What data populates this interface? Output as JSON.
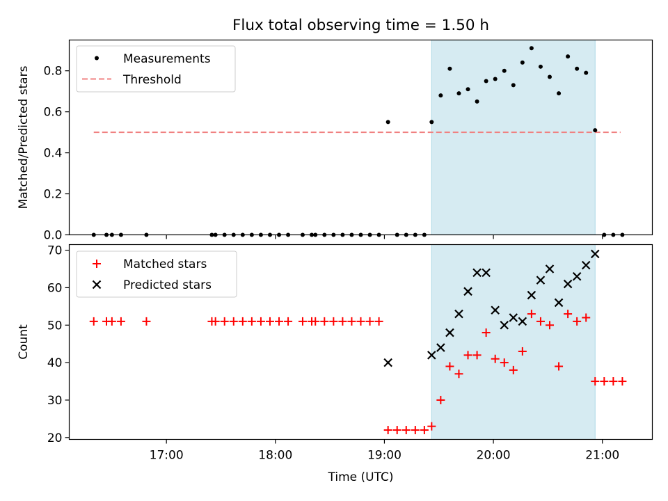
{
  "chart_data": {
    "title": "Flux total observing time = 1.50 h",
    "xlabel": "Time (UTC)",
    "x_ticks": [
      "17:00",
      "18:00",
      "19:00",
      "20:00",
      "21:00"
    ],
    "observing_window": [
      "19:26",
      "20:56"
    ],
    "colors": {
      "measurements": "#000000",
      "threshold": "#f08080",
      "matched": "#ff0000",
      "predicted": "#000000",
      "span": "#add8e6"
    },
    "panels": [
      {
        "type": "scatter",
        "ylabel": "Matched/Predicted stars",
        "ylim": [
          0,
          0.95
        ],
        "y_ticks": [
          "0.0",
          "0.2",
          "0.4",
          "0.6",
          "0.8"
        ],
        "legend_position": "upper-left",
        "threshold": {
          "name": "Threshold",
          "value": 0.5,
          "x_range": [
            "16:20",
            "21:10"
          ]
        },
        "series": [
          {
            "name": "Measurements",
            "marker": "dot",
            "points": [
              [
                "16:20",
                0
              ],
              [
                "16:27",
                0
              ],
              [
                "16:30",
                0
              ],
              [
                "16:35",
                0
              ],
              [
                "16:49",
                0
              ],
              [
                "17:25",
                0
              ],
              [
                "17:27",
                0
              ],
              [
                "17:32",
                0
              ],
              [
                "17:37",
                0
              ],
              [
                "17:42",
                0
              ],
              [
                "17:47",
                0
              ],
              [
                "17:52",
                0
              ],
              [
                "17:57",
                0
              ],
              [
                "18:02",
                0
              ],
              [
                "18:07",
                0
              ],
              [
                "18:15",
                0
              ],
              [
                "18:20",
                0
              ],
              [
                "18:22",
                0
              ],
              [
                "18:27",
                0
              ],
              [
                "18:32",
                0
              ],
              [
                "18:37",
                0
              ],
              [
                "18:42",
                0
              ],
              [
                "18:47",
                0
              ],
              [
                "18:52",
                0
              ],
              [
                "18:57",
                0
              ],
              [
                "19:02",
                0.55
              ],
              [
                "19:07",
                0
              ],
              [
                "19:12",
                0
              ],
              [
                "19:17",
                0
              ],
              [
                "19:22",
                0
              ],
              [
                "19:26",
                0.55
              ],
              [
                "19:31",
                0.68
              ],
              [
                "19:36",
                0.81
              ],
              [
                "19:41",
                0.69
              ],
              [
                "19:46",
                0.71
              ],
              [
                "19:51",
                0.65
              ],
              [
                "19:56",
                0.75
              ],
              [
                "20:01",
                0.76
              ],
              [
                "20:06",
                0.8
              ],
              [
                "20:11",
                0.73
              ],
              [
                "20:16",
                0.84
              ],
              [
                "20:21",
                0.91
              ],
              [
                "20:26",
                0.82
              ],
              [
                "20:31",
                0.77
              ],
              [
                "20:36",
                0.69
              ],
              [
                "20:41",
                0.87
              ],
              [
                "20:46",
                0.81
              ],
              [
                "20:51",
                0.79
              ],
              [
                "20:56",
                0.51
              ],
              [
                "21:01",
                0
              ],
              [
                "21:06",
                0
              ],
              [
                "21:11",
                0
              ]
            ]
          }
        ]
      },
      {
        "type": "scatter",
        "ylabel": "Count",
        "ylim": [
          19.5,
          71.5
        ],
        "y_ticks": [
          "20",
          "30",
          "40",
          "50",
          "60",
          "70"
        ],
        "legend_position": "upper-left",
        "series": [
          {
            "name": "Matched stars",
            "marker": "plus",
            "points": [
              [
                "16:20",
                51
              ],
              [
                "16:27",
                51
              ],
              [
                "16:30",
                51
              ],
              [
                "16:35",
                51
              ],
              [
                "16:49",
                51
              ],
              [
                "17:25",
                51
              ],
              [
                "17:27",
                51
              ],
              [
                "17:32",
                51
              ],
              [
                "17:37",
                51
              ],
              [
                "17:42",
                51
              ],
              [
                "17:47",
                51
              ],
              [
                "17:52",
                51
              ],
              [
                "17:57",
                51
              ],
              [
                "18:02",
                51
              ],
              [
                "18:07",
                51
              ],
              [
                "18:15",
                51
              ],
              [
                "18:20",
                51
              ],
              [
                "18:22",
                51
              ],
              [
                "18:27",
                51
              ],
              [
                "18:32",
                51
              ],
              [
                "18:37",
                51
              ],
              [
                "18:42",
                51
              ],
              [
                "18:47",
                51
              ],
              [
                "18:52",
                51
              ],
              [
                "18:57",
                51
              ],
              [
                "19:02",
                22
              ],
              [
                "19:07",
                22
              ],
              [
                "19:12",
                22
              ],
              [
                "19:17",
                22
              ],
              [
                "19:22",
                22
              ],
              [
                "19:26",
                23
              ],
              [
                "19:31",
                30
              ],
              [
                "19:36",
                39
              ],
              [
                "19:41",
                37
              ],
              [
                "19:46",
                42
              ],
              [
                "19:51",
                42
              ],
              [
                "19:56",
                48
              ],
              [
                "20:01",
                41
              ],
              [
                "20:06",
                40
              ],
              [
                "20:11",
                38
              ],
              [
                "20:16",
                43
              ],
              [
                "20:21",
                53
              ],
              [
                "20:26",
                51
              ],
              [
                "20:31",
                50
              ],
              [
                "20:36",
                39
              ],
              [
                "20:41",
                53
              ],
              [
                "20:46",
                51
              ],
              [
                "20:51",
                52
              ],
              [
                "20:56",
                35
              ],
              [
                "21:01",
                35
              ],
              [
                "21:06",
                35
              ],
              [
                "21:11",
                35
              ]
            ]
          },
          {
            "name": "Predicted stars",
            "marker": "cross",
            "points": [
              [
                "19:02",
                40
              ],
              [
                "19:26",
                42
              ],
              [
                "19:31",
                44
              ],
              [
                "19:36",
                48
              ],
              [
                "19:41",
                53
              ],
              [
                "19:46",
                59
              ],
              [
                "19:51",
                64
              ],
              [
                "19:56",
                64
              ],
              [
                "20:01",
                54
              ],
              [
                "20:06",
                50
              ],
              [
                "20:11",
                52
              ],
              [
                "20:16",
                51
              ],
              [
                "20:21",
                58
              ],
              [
                "20:26",
                62
              ],
              [
                "20:31",
                65
              ],
              [
                "20:36",
                56
              ],
              [
                "20:41",
                61
              ],
              [
                "20:46",
                63
              ],
              [
                "20:51",
                66
              ],
              [
                "20:56",
                69
              ]
            ]
          }
        ]
      }
    ]
  }
}
